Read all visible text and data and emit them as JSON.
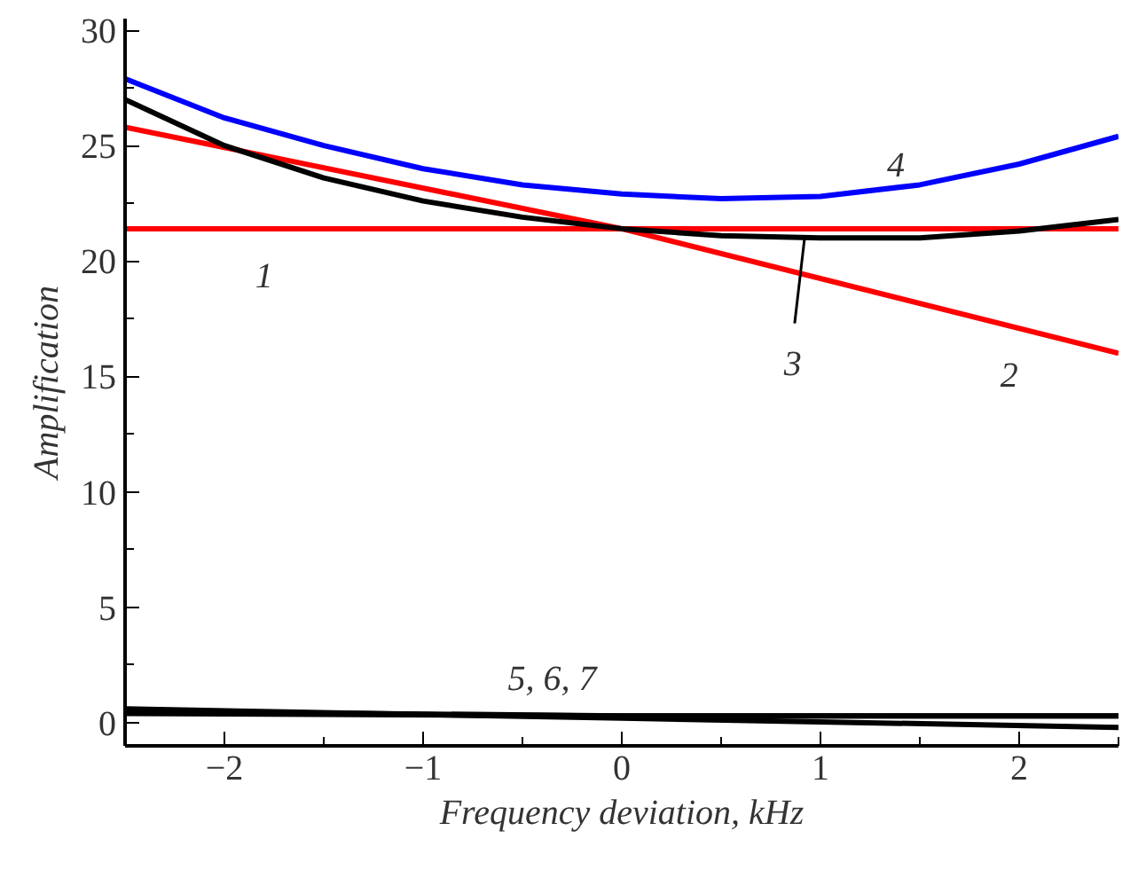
{
  "chart_data": {
    "type": "line",
    "xlabel": "Frequency deviation, kHz",
    "ylabel": "Amplification",
    "xlim": [
      -2.5,
      2.5
    ],
    "ylim": [
      -1,
      30.5
    ],
    "xticks": [
      {
        "value": -2,
        "label": "−2"
      },
      {
        "value": -1,
        "label": "−1"
      },
      0,
      1,
      2
    ],
    "yticks": [
      0,
      5,
      10,
      15,
      20,
      25,
      30
    ],
    "grid": false,
    "line_style": "solid",
    "marker": "none",
    "series": [
      {
        "color": "#ff0000",
        "x": [
          -2.5,
          0,
          2.5
        ],
        "values": [
          21.4,
          21.4,
          21.4
        ]
      },
      {
        "color": "#ff0000",
        "x": [
          -2.5,
          0,
          2.5
        ],
        "values": [
          25.8,
          21.4,
          16.0
        ]
      },
      {
        "color": "#000000",
        "x": [
          -2.5,
          -2,
          -1.5,
          -1,
          -0.5,
          0,
          0.5,
          1,
          1.5,
          2,
          2.5
        ],
        "values": [
          27.0,
          25.0,
          23.6,
          22.6,
          21.9,
          21.4,
          21.1,
          21.0,
          21.0,
          21.3,
          21.8
        ]
      },
      {
        "color": "#0000ff",
        "x": [
          -2.5,
          -2,
          -1.5,
          -1,
          -0.5,
          0,
          0.5,
          1,
          1.5,
          2,
          2.5
        ],
        "values": [
          27.9,
          26.2,
          25.0,
          24.0,
          23.3,
          22.9,
          22.7,
          22.8,
          23.3,
          24.2,
          25.4
        ]
      },
      {
        "color": "#000000",
        "x": [
          -2.5,
          0,
          2.5
        ],
        "values": [
          0.6,
          0.2,
          -0.2
        ]
      },
      {
        "color": "#000000",
        "x": [
          -2.5,
          0,
          2.5
        ],
        "values": [
          0.4,
          0.3,
          0.3
        ]
      },
      {
        "color": "#000000",
        "x": [
          -2.5,
          0,
          2.5
        ],
        "values": [
          0.5,
          0.3,
          0.3
        ]
      }
    ],
    "annotations": [
      "1",
      "2",
      {
        "text": "3",
        "x": 0.92,
        "y": 21.0
      },
      "4",
      "5, 6, 7"
    ]
  }
}
